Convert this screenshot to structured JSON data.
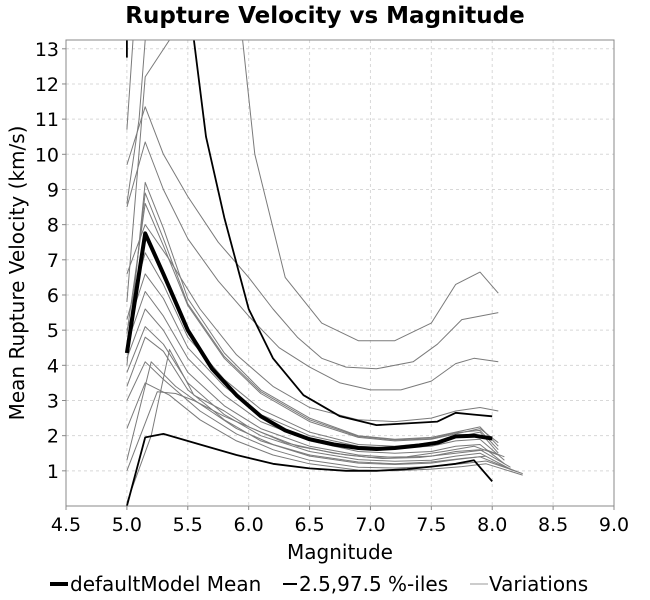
{
  "chart_data": {
    "type": "line",
    "title": "Rupture Velocity vs Magnitude",
    "xlabel": "Magnitude",
    "ylabel": "Mean Rupture Velocity (km/s)",
    "xlim": [
      4.5,
      9.0
    ],
    "ylim": [
      0.0,
      13.25
    ],
    "x_ticks": [
      "4.5",
      "5.0",
      "5.5",
      "6.0",
      "6.5",
      "7.0",
      "7.5",
      "8.0",
      "8.5",
      "9.0"
    ],
    "y_ticks": [
      "1",
      "2",
      "3",
      "4",
      "5",
      "6",
      "7",
      "8",
      "9",
      "10",
      "11",
      "12",
      "13"
    ],
    "grid": true,
    "legend": {
      "placement": "bottom",
      "entries": [
        {
          "label": "defaultModel Mean",
          "color": "#000000",
          "style": "thick"
        },
        {
          "label": "2.5,97.5 %-iles",
          "color": "#000000",
          "style": "normal"
        },
        {
          "label": "Variations",
          "color": "#808080",
          "style": "thin"
        }
      ]
    },
    "series": [
      {
        "name": "defaultModel Mean",
        "role": "mean",
        "x": [
          5.0,
          5.15,
          5.3,
          5.5,
          5.7,
          5.9,
          6.1,
          6.3,
          6.5,
          6.7,
          6.9,
          7.05,
          7.2,
          7.4,
          7.55,
          7.7,
          7.85,
          8.0
        ],
        "y": [
          4.35,
          7.75,
          6.6,
          5.0,
          3.9,
          3.15,
          2.55,
          2.15,
          1.9,
          1.75,
          1.65,
          1.62,
          1.65,
          1.72,
          1.8,
          1.98,
          2.0,
          1.92
        ]
      },
      {
        "name": "2.5,97.5 %-iles",
        "role": "percentile",
        "x": [
          5.0,
          5.15,
          5.3,
          5.6,
          5.9,
          6.2,
          6.5,
          6.8,
          7.05,
          7.3,
          7.5,
          7.7,
          7.85,
          8.0
        ],
        "y": [
          0.0,
          1.95,
          2.05,
          1.75,
          1.45,
          1.2,
          1.07,
          1.0,
          1.0,
          1.05,
          1.12,
          1.2,
          1.3,
          0.7
        ]
      },
      {
        "name": "2.5,97.5 %-iles",
        "role": "percentile",
        "x": [
          5.55,
          5.65,
          5.8,
          6.0,
          6.2,
          6.45,
          6.75,
          7.05,
          7.3,
          7.55,
          7.7,
          7.85,
          8.0
        ],
        "y": [
          13.25,
          10.5,
          8.2,
          5.6,
          4.2,
          3.15,
          2.55,
          2.3,
          2.35,
          2.4,
          2.65,
          2.6,
          2.55
        ]
      },
      {
        "name": "2.5,97.5 %-iles",
        "role": "percentile",
        "x": [
          5.0,
          5.0
        ],
        "y": [
          12.75,
          13.25
        ]
      },
      {
        "role": "variation",
        "x": [
          5.0,
          5.05,
          5.2
        ],
        "y": [
          10.7,
          13.25,
          13.25
        ]
      },
      {
        "role": "variation",
        "x": [
          5.0,
          5.1,
          5.15,
          5.5,
          5.9,
          6.3
        ],
        "y": [
          8.6,
          11.0,
          13.25,
          13.25,
          13.25,
          13.25
        ]
      },
      {
        "role": "variation",
        "x": [
          5.3,
          5.5,
          5.75,
          6.0,
          6.3
        ],
        "y": [
          13.25,
          13.25,
          13.25,
          13.25,
          13.25
        ]
      },
      {
        "role": "variation",
        "x": [
          5.0,
          5.15,
          5.35,
          5.55,
          5.7,
          5.95,
          6.0
        ],
        "y": [
          5.8,
          12.2,
          13.25,
          13.25,
          13.25,
          13.25,
          13.25
        ]
      },
      {
        "role": "variation",
        "x": [
          5.95,
          6.05,
          6.3,
          6.6,
          6.9,
          7.2,
          7.5,
          7.7,
          7.9,
          8.05
        ],
        "y": [
          13.25,
          10.0,
          6.5,
          5.2,
          4.7,
          4.7,
          5.2,
          6.3,
          6.65,
          6.05
        ]
      },
      {
        "role": "variation",
        "x": [
          5.0,
          5.15,
          5.3,
          5.5,
          5.75,
          6.0,
          6.2,
          6.4,
          6.6,
          6.8,
          7.05,
          7.35,
          7.55,
          7.75,
          8.05
        ],
        "y": [
          9.7,
          11.35,
          10.0,
          8.8,
          7.5,
          6.5,
          5.6,
          4.8,
          4.2,
          3.95,
          3.9,
          4.1,
          4.6,
          5.3,
          5.5
        ]
      },
      {
        "role": "variation",
        "x": [
          5.0,
          5.15,
          5.3,
          5.5,
          5.75,
          6.0,
          6.25,
          6.5,
          6.75,
          7.0,
          7.25,
          7.5,
          7.7,
          7.85,
          8.05
        ],
        "y": [
          8.5,
          10.35,
          9.0,
          7.6,
          6.4,
          5.4,
          4.5,
          3.95,
          3.5,
          3.3,
          3.3,
          3.55,
          4.05,
          4.2,
          4.1
        ]
      },
      {
        "role": "variation",
        "x": [
          5.0,
          5.15,
          5.35,
          5.6,
          5.9,
          6.2,
          6.5,
          6.9,
          7.2,
          7.5,
          7.7,
          7.9,
          8.05
        ],
        "y": [
          6.6,
          8.0,
          7.0,
          5.6,
          4.3,
          3.4,
          2.8,
          2.45,
          2.4,
          2.5,
          2.7,
          2.8,
          2.7
        ]
      },
      {
        "role": "variation",
        "x": [
          5.0,
          5.15,
          5.3,
          5.5,
          5.8,
          6.1,
          6.5,
          6.9,
          7.2,
          7.5,
          7.7,
          7.9,
          8.05
        ],
        "y": [
          5.3,
          7.2,
          6.3,
          4.8,
          3.6,
          2.75,
          2.1,
          1.75,
          1.7,
          1.8,
          1.95,
          2.1,
          1.5
        ]
      },
      {
        "role": "variation",
        "x": [
          5.0,
          5.15,
          5.3,
          5.5,
          5.8,
          6.1,
          6.5,
          6.9,
          7.2,
          7.5,
          7.7,
          7.9,
          8.1
        ],
        "y": [
          5.0,
          6.6,
          5.9,
          4.5,
          3.4,
          2.6,
          2.0,
          1.7,
          1.65,
          1.7,
          1.85,
          1.9,
          1.3
        ]
      },
      {
        "role": "variation",
        "x": [
          5.0,
          5.15,
          5.3,
          5.5,
          5.8,
          6.1,
          6.5,
          6.9,
          7.2,
          7.5,
          7.7,
          7.9,
          8.1
        ],
        "y": [
          4.6,
          6.1,
          5.4,
          4.2,
          3.15,
          2.4,
          1.85,
          1.55,
          1.5,
          1.55,
          1.7,
          1.75,
          1.2
        ]
      },
      {
        "role": "variation",
        "x": [
          5.0,
          5.15,
          5.3,
          5.5,
          5.8,
          6.1,
          6.5,
          6.9,
          7.2,
          7.5,
          7.7,
          7.9,
          8.15
        ],
        "y": [
          4.2,
          5.6,
          5.0,
          3.8,
          2.85,
          2.2,
          1.7,
          1.45,
          1.38,
          1.42,
          1.55,
          1.6,
          1.1
        ]
      },
      {
        "role": "variation",
        "x": [
          5.0,
          5.15,
          5.3,
          5.5,
          5.8,
          6.1,
          6.5,
          6.9,
          7.2,
          7.5,
          7.7,
          7.9,
          8.15
        ],
        "y": [
          3.8,
          5.1,
          4.6,
          3.5,
          2.6,
          2.0,
          1.55,
          1.32,
          1.27,
          1.3,
          1.42,
          1.5,
          1.05
        ]
      },
      {
        "role": "variation",
        "x": [
          5.0,
          5.15,
          5.3,
          5.5,
          5.8,
          6.1,
          6.5,
          6.9,
          7.2,
          7.5,
          7.7,
          7.9,
          8.2
        ],
        "y": [
          3.4,
          4.8,
          4.4,
          3.3,
          2.45,
          1.85,
          1.42,
          1.22,
          1.18,
          1.22,
          1.32,
          1.4,
          0.98
        ]
      },
      {
        "role": "variation",
        "x": [
          5.0,
          5.15,
          5.3,
          5.6,
          5.9,
          6.2,
          6.5,
          6.9,
          7.2,
          7.5,
          7.75,
          7.95,
          8.25
        ],
        "y": [
          3.0,
          4.1,
          3.6,
          2.7,
          2.05,
          1.6,
          1.3,
          1.1,
          1.08,
          1.12,
          1.2,
          1.28,
          0.92
        ]
      },
      {
        "role": "variation",
        "x": [
          5.0,
          5.15,
          5.35,
          5.6,
          5.9,
          6.2,
          6.5,
          6.9,
          7.2,
          7.5,
          7.75,
          7.95,
          8.25
        ],
        "y": [
          2.2,
          3.5,
          3.15,
          2.45,
          1.85,
          1.45,
          1.2,
          1.02,
          1.0,
          1.05,
          1.12,
          1.2,
          0.88
        ]
      },
      {
        "role": "variation",
        "x": [
          5.0,
          5.2,
          5.35,
          5.55,
          5.8,
          6.0,
          6.3,
          6.7,
          7.0,
          7.3,
          7.6,
          7.85,
          8.05
        ],
        "y": [
          0.1,
          2.0,
          4.45,
          3.15,
          2.7,
          2.25,
          1.8,
          1.5,
          1.38,
          1.4,
          1.55,
          1.7,
          1.45
        ]
      },
      {
        "role": "variation",
        "x": [
          5.0,
          5.25,
          5.4,
          5.55,
          5.8,
          6.1,
          6.4,
          6.8,
          7.1,
          7.4,
          7.7,
          7.95,
          8.1
        ],
        "y": [
          1.0,
          3.25,
          3.2,
          3.0,
          2.55,
          2.1,
          1.7,
          1.45,
          1.35,
          1.38,
          1.5,
          1.6,
          1.4
        ]
      },
      {
        "role": "variation",
        "x": [
          5.0,
          5.2,
          5.4,
          5.6,
          5.9,
          6.2,
          6.5,
          6.9,
          7.2,
          7.5,
          7.75,
          7.95
        ],
        "y": [
          1.3,
          4.1,
          3.4,
          2.9,
          2.2,
          1.75,
          1.45,
          1.25,
          1.2,
          1.25,
          1.35,
          1.42
        ]
      },
      {
        "role": "variation",
        "x": [
          5.0,
          5.15,
          5.3,
          5.5,
          5.8,
          6.1,
          6.5,
          6.9,
          7.2,
          7.5,
          7.7,
          7.9,
          8.05
        ],
        "y": [
          4.9,
          8.6,
          7.4,
          5.7,
          4.2,
          3.2,
          2.4,
          1.95,
          1.85,
          1.9,
          2.05,
          2.2,
          1.8
        ]
      },
      {
        "role": "variation",
        "x": [
          5.0,
          5.15,
          5.3,
          5.5,
          5.8,
          6.1,
          6.5,
          6.9,
          7.2,
          7.5,
          7.7,
          7.9,
          8.05
        ],
        "y": [
          4.0,
          9.2,
          7.9,
          5.9,
          4.35,
          3.3,
          2.5,
          2.0,
          1.9,
          1.95,
          2.1,
          2.25,
          1.7
        ]
      },
      {
        "role": "variation",
        "x": [
          5.0,
          5.15,
          5.3,
          5.5,
          5.8,
          6.1,
          6.5,
          6.9,
          7.2,
          7.5,
          7.7,
          7.9,
          8.05
        ],
        "y": [
          4.4,
          8.9,
          7.6,
          5.75,
          4.25,
          3.25,
          2.45,
          1.98,
          1.88,
          1.92,
          2.08,
          2.15,
          1.6
        ]
      }
    ]
  }
}
